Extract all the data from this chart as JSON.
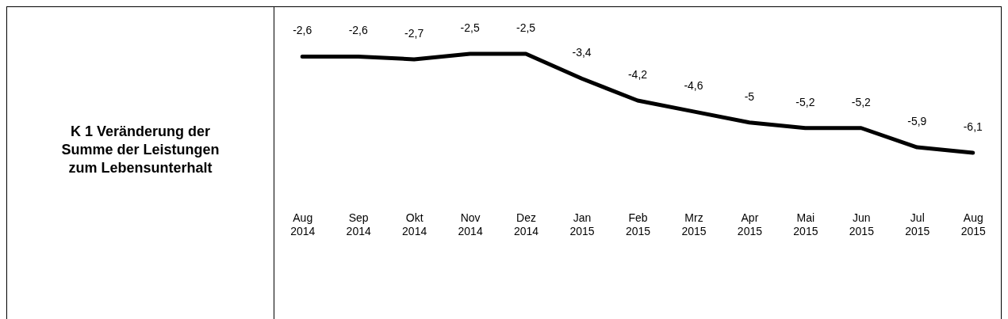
{
  "chart_data": {
    "type": "line",
    "title": "K 1 Veränderung der Summe der Leistungen zum Lebensunterhalt",
    "categories": [
      "Aug 2014",
      "Sep 2014",
      "Okt 2014",
      "Nov 2014",
      "Dez 2014",
      "Jan 2015",
      "Feb 2015",
      "Mrz 2015",
      "Apr 2015",
      "Mai 2015",
      "Jun 2015",
      "Jul 2015",
      "Aug 2015"
    ],
    "series": [
      {
        "color": "#000000",
        "values": [
          -2.6,
          -2.6,
          -2.7,
          -2.5,
          -2.5,
          -3.4,
          -4.2,
          -4.6,
          -5,
          -5.2,
          -5.2,
          -5.9,
          -6.1
        ],
        "value_labels": [
          "-2,6",
          "-2,6",
          "-2,7",
          "-2,5",
          "-2,5",
          "-3,4",
          "-4,2",
          "-4,6",
          "-5",
          "-5,2",
          "-5,2",
          "-5,9",
          "-6,1"
        ]
      }
    ]
  }
}
